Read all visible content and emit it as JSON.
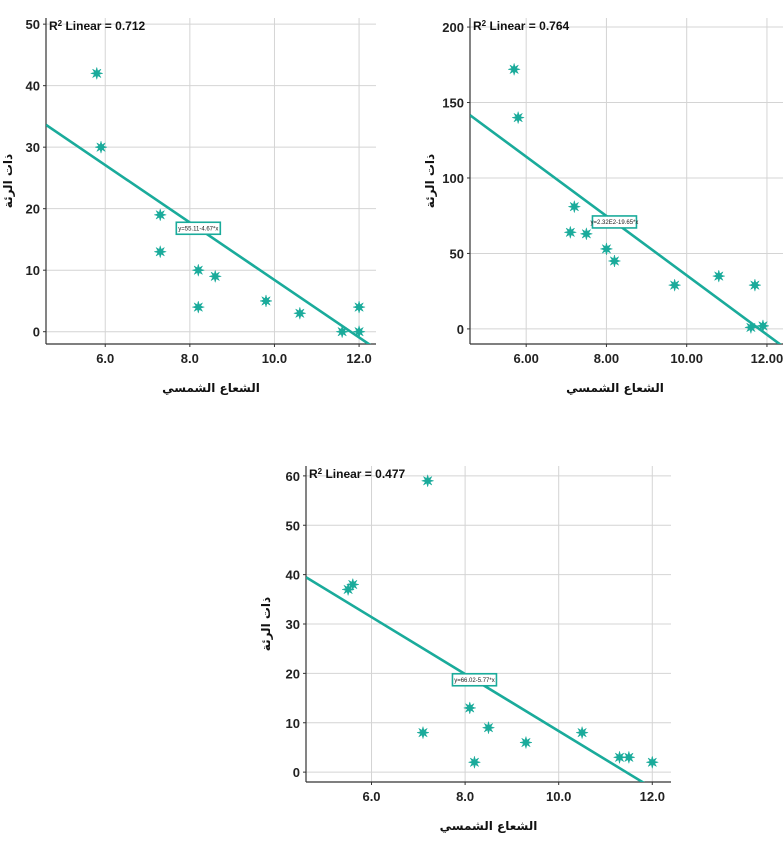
{
  "accent_color": "#1aab9b",
  "chart_data": [
    {
      "type": "scatter",
      "title": "",
      "xlabel": "الشعاع الشمسي",
      "ylabel": "ذات الرئة",
      "xlim": [
        4.6,
        12.4
      ],
      "ylim": [
        -2,
        51
      ],
      "xticks": [
        6,
        8,
        10,
        12
      ],
      "xtick_labels": [
        "6.0",
        "8.0",
        "10.0",
        "12.0"
      ],
      "yticks": [
        0,
        10,
        20,
        30,
        40,
        50
      ],
      "ytick_labels": [
        "0",
        "10",
        "20",
        "30",
        "40",
        "50"
      ],
      "grid": true,
      "x": [
        5.8,
        5.9,
        7.3,
        7.3,
        8.2,
        8.2,
        8.6,
        9.8,
        10.6,
        11.6,
        12.0,
        12.0
      ],
      "y": [
        42,
        30,
        19,
        13,
        10,
        4,
        9,
        5,
        3,
        0,
        4,
        0
      ],
      "fit_line": {
        "intercept": 55.11,
        "slope": -4.67
      },
      "r2_label": "Linear = 0.712",
      "equation_label": "y=55.11-4.67*x"
    },
    {
      "type": "scatter",
      "title": "",
      "xlabel": "الشعاع الشمسي",
      "ylabel": "ذات الرئة",
      "xlim": [
        4.6,
        12.4
      ],
      "ylim": [
        -10,
        206
      ],
      "xticks": [
        6,
        8,
        10,
        12
      ],
      "xtick_labels": [
        "6.00",
        "8.00",
        "10.00",
        "12.00"
      ],
      "yticks": [
        0,
        50,
        100,
        150,
        200
      ],
      "ytick_labels": [
        "0",
        "50",
        "100",
        "150",
        "200"
      ],
      "grid": true,
      "x": [
        5.7,
        5.8,
        7.1,
        7.2,
        7.5,
        8.0,
        8.2,
        9.7,
        10.8,
        11.7,
        11.6,
        11.9
      ],
      "y": [
        172,
        140,
        64,
        81,
        63,
        53,
        45,
        29,
        35,
        29,
        1,
        2
      ],
      "fit_line": {
        "intercept": 232,
        "slope": -19.65
      },
      "r2_label": "Linear = 0.764",
      "equation_label": "y=2.32E2-19.65*x"
    },
    {
      "type": "scatter",
      "title": "",
      "xlabel": "الشعاع الشمسي",
      "ylabel": "ذات الرئة",
      "xlim": [
        4.6,
        12.4
      ],
      "ylim": [
        -2,
        62
      ],
      "xticks": [
        6,
        8,
        10,
        12
      ],
      "xtick_labels": [
        "6.0",
        "8.0",
        "10.0",
        "12.0"
      ],
      "yticks": [
        0,
        10,
        20,
        30,
        40,
        50,
        60
      ],
      "ytick_labels": [
        "0",
        "10",
        "20",
        "30",
        "40",
        "50",
        "60"
      ],
      "grid": true,
      "x": [
        5.5,
        5.6,
        7.2,
        7.1,
        8.1,
        8.2,
        8.5,
        9.3,
        10.5,
        11.3,
        11.5,
        12.0
      ],
      "y": [
        37,
        38,
        59,
        8,
        13,
        2,
        9,
        6,
        8,
        3,
        3,
        2
      ],
      "fit_line": {
        "intercept": 66.02,
        "slope": -5.77
      },
      "r2_label": "Linear = 0.477",
      "equation_label": "y=66.02-5.77*x"
    }
  ]
}
